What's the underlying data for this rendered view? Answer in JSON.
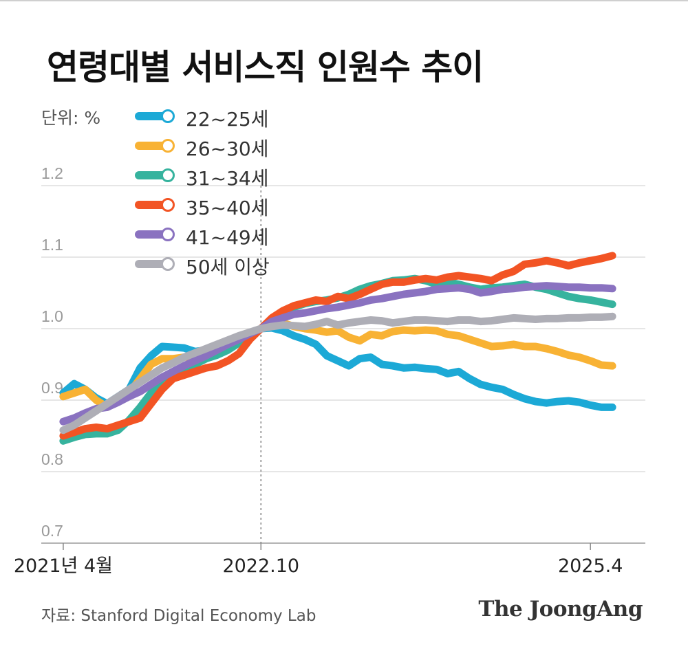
{
  "title": "연령대별 서비스직 인원수 추이",
  "unit_label": "단위: %",
  "source": "자료: Stanford Digital Economy Lab",
  "brand": "The JoongAng",
  "chart_data": {
    "type": "line",
    "title": "연령대별 서비스직 인원수 추이",
    "ylabel": "",
    "ylim": [
      0.7,
      1.2
    ],
    "yticks": [
      0.7,
      0.8,
      0.9,
      1.0,
      1.1,
      1.2
    ],
    "ytick_labels": [
      "0.7",
      "0.8",
      "0.9",
      "1.0",
      "1.1",
      "1.2"
    ],
    "xlim": [
      "2021-02",
      "2025-09"
    ],
    "xticks": [
      {
        "date": "2021-04",
        "label": "2021년 4월"
      },
      {
        "date": "2022-10",
        "label": "2022.10"
      },
      {
        "date": "2025-04",
        "label": "2025.4"
      }
    ],
    "reference_line": {
      "date": "2022-10",
      "style": "dotted"
    },
    "grid": true,
    "legend_position": "top-left",
    "x": [
      "2021-04",
      "2021-05",
      "2021-06",
      "2021-07",
      "2021-08",
      "2021-09",
      "2021-10",
      "2021-11",
      "2021-12",
      "2022-01",
      "2022-02",
      "2022-03",
      "2022-04",
      "2022-05",
      "2022-06",
      "2022-07",
      "2022-08",
      "2022-09",
      "2022-10",
      "2022-11",
      "2022-12",
      "2023-01",
      "2023-02",
      "2023-03",
      "2023-04",
      "2023-05",
      "2023-06",
      "2023-07",
      "2023-08",
      "2023-09",
      "2023-10",
      "2023-11",
      "2023-12",
      "2024-01",
      "2024-02",
      "2024-03",
      "2024-04",
      "2024-05",
      "2024-06",
      "2024-07",
      "2024-08",
      "2024-09",
      "2024-10",
      "2024-11",
      "2024-12",
      "2025-01",
      "2025-02",
      "2025-03",
      "2025-04",
      "2025-05",
      "2025-06"
    ],
    "series": [
      {
        "name": "22~25세",
        "color": "#1ca9d6",
        "values": [
          0.91,
          0.923,
          0.915,
          0.903,
          0.895,
          0.905,
          0.915,
          0.945,
          0.962,
          0.975,
          0.974,
          0.973,
          0.968,
          0.97,
          0.972,
          0.973,
          0.982,
          0.992,
          1.0,
          1.001,
          0.997,
          0.99,
          0.985,
          0.978,
          0.962,
          0.955,
          0.948,
          0.958,
          0.96,
          0.95,
          0.948,
          0.945,
          0.946,
          0.944,
          0.943,
          0.937,
          0.94,
          0.93,
          0.922,
          0.918,
          0.915,
          0.908,
          0.902,
          0.898,
          0.896,
          0.898,
          0.899,
          0.897,
          0.893,
          0.89,
          0.89
        ]
      },
      {
        "name": "26~30세",
        "color": "#f8b234",
        "values": [
          0.905,
          0.91,
          0.915,
          0.9,
          0.89,
          0.9,
          0.91,
          0.93,
          0.95,
          0.958,
          0.958,
          0.96,
          0.962,
          0.97,
          0.975,
          0.98,
          0.986,
          0.994,
          1.0,
          1.008,
          1.008,
          1.003,
          1.0,
          0.998,
          0.995,
          0.997,
          0.988,
          0.983,
          0.992,
          0.99,
          0.996,
          0.998,
          0.997,
          0.998,
          0.997,
          0.992,
          0.99,
          0.985,
          0.98,
          0.975,
          0.976,
          0.978,
          0.975,
          0.975,
          0.972,
          0.968,
          0.963,
          0.96,
          0.955,
          0.949,
          0.948
        ]
      },
      {
        "name": "31~34세",
        "color": "#36b39e",
        "values": [
          0.843,
          0.848,
          0.852,
          0.853,
          0.853,
          0.858,
          0.872,
          0.89,
          0.91,
          0.93,
          0.938,
          0.945,
          0.95,
          0.958,
          0.963,
          0.97,
          0.98,
          0.992,
          1.0,
          1.012,
          1.022,
          1.03,
          1.035,
          1.038,
          1.04,
          1.043,
          1.048,
          1.055,
          1.06,
          1.063,
          1.067,
          1.068,
          1.07,
          1.067,
          1.062,
          1.065,
          1.062,
          1.058,
          1.055,
          1.057,
          1.058,
          1.06,
          1.062,
          1.058,
          1.055,
          1.05,
          1.045,
          1.042,
          1.04,
          1.037,
          1.034
        ]
      },
      {
        "name": "35~40세",
        "color": "#f25424",
        "values": [
          0.85,
          0.855,
          0.86,
          0.862,
          0.86,
          0.865,
          0.87,
          0.875,
          0.895,
          0.915,
          0.93,
          0.935,
          0.94,
          0.945,
          0.948,
          0.955,
          0.965,
          0.985,
          1.0,
          1.015,
          1.025,
          1.032,
          1.036,
          1.04,
          1.038,
          1.045,
          1.042,
          1.048,
          1.055,
          1.062,
          1.065,
          1.065,
          1.068,
          1.07,
          1.068,
          1.072,
          1.074,
          1.072,
          1.07,
          1.067,
          1.075,
          1.08,
          1.09,
          1.092,
          1.095,
          1.092,
          1.088,
          1.092,
          1.095,
          1.098,
          1.102
        ]
      },
      {
        "name": "41~49세",
        "color": "#8a72c0",
        "values": [
          0.87,
          0.875,
          0.882,
          0.888,
          0.89,
          0.897,
          0.905,
          0.912,
          0.922,
          0.932,
          0.94,
          0.948,
          0.955,
          0.962,
          0.97,
          0.978,
          0.985,
          0.993,
          1.0,
          1.01,
          1.015,
          1.02,
          1.022,
          1.025,
          1.028,
          1.03,
          1.033,
          1.036,
          1.04,
          1.042,
          1.045,
          1.048,
          1.05,
          1.052,
          1.055,
          1.056,
          1.057,
          1.055,
          1.05,
          1.052,
          1.055,
          1.056,
          1.058,
          1.059,
          1.06,
          1.059,
          1.058,
          1.058,
          1.057,
          1.057,
          1.056
        ]
      },
      {
        "name": "50세 이상",
        "color": "#aeaeb6",
        "values": [
          0.858,
          0.865,
          0.875,
          0.885,
          0.895,
          0.905,
          0.915,
          0.925,
          0.935,
          0.945,
          0.952,
          0.96,
          0.966,
          0.972,
          0.978,
          0.984,
          0.99,
          0.995,
          1.0,
          1.003,
          1.005,
          1.004,
          1.003,
          1.006,
          1.01,
          1.005,
          1.008,
          1.01,
          1.012,
          1.011,
          1.008,
          1.01,
          1.012,
          1.012,
          1.011,
          1.01,
          1.012,
          1.012,
          1.01,
          1.011,
          1.013,
          1.015,
          1.014,
          1.013,
          1.014,
          1.014,
          1.015,
          1.015,
          1.016,
          1.016,
          1.017
        ]
      }
    ]
  }
}
